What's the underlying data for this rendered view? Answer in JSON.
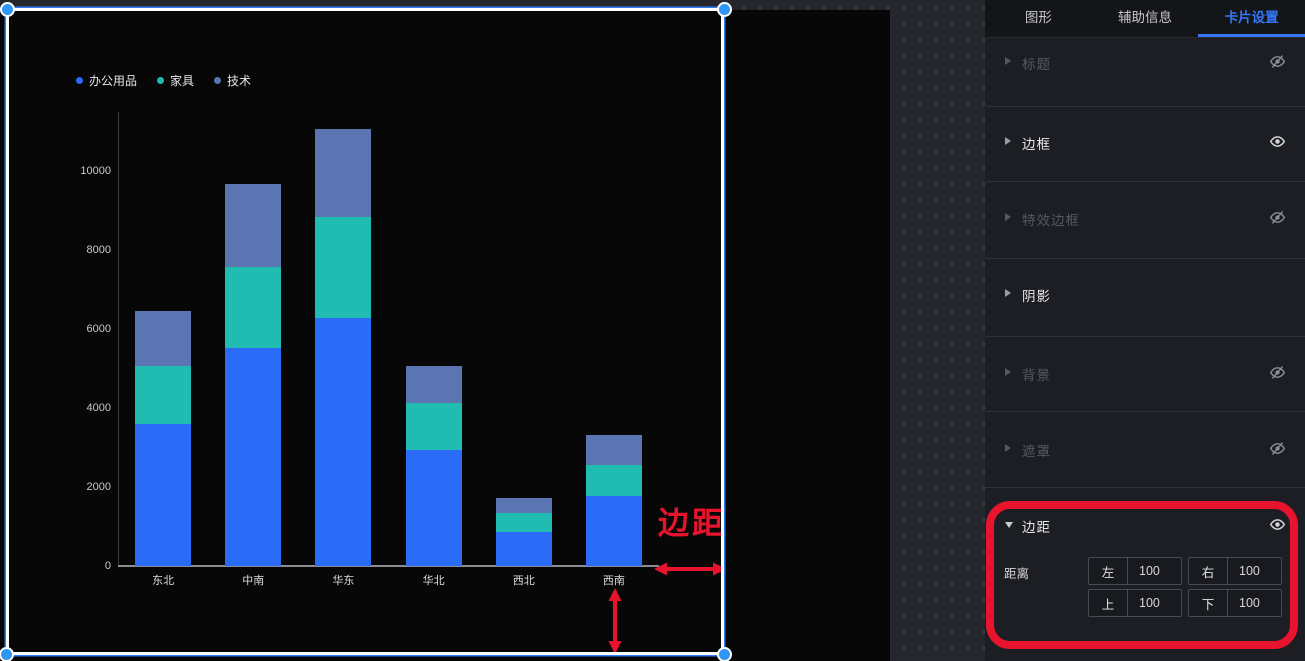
{
  "chart_data": {
    "type": "bar",
    "stacked": true,
    "title": "",
    "categories": [
      "东北",
      "中南",
      "华东",
      "华北",
      "西北",
      "西南"
    ],
    "series": [
      {
        "name": "办公用品",
        "color": "#2A6BF8",
        "values": [
          3600,
          5520,
          6280,
          2940,
          860,
          1770
        ]
      },
      {
        "name": "家具",
        "color": "#21BCB1",
        "values": [
          1460,
          2050,
          2550,
          1190,
          480,
          790
        ]
      },
      {
        "name": "技术",
        "color": "#5B74B2",
        "values": [
          1390,
          2100,
          2230,
          940,
          380,
          760
        ]
      }
    ],
    "y_ticks": [
      0,
      2000,
      4000,
      6000,
      8000,
      10000
    ],
    "ylim": [
      0,
      11490
    ],
    "grid": false,
    "legend_position": "top-left",
    "background": "#070707"
  },
  "annotations": {
    "margin_label": "边距",
    "color": "#E8132D"
  },
  "panel": {
    "accent_color": "#3577F5",
    "tabs": [
      {
        "label": "图形",
        "active": false
      },
      {
        "label": "辅助信息",
        "active": false
      },
      {
        "label": "卡片设置",
        "active": true
      }
    ],
    "sections": [
      {
        "label": "标题",
        "enabled": false,
        "expanded": false,
        "eye": "hidden"
      },
      {
        "label": "边框",
        "enabled": true,
        "expanded": false,
        "eye": "visible"
      },
      {
        "label": "特效边框",
        "enabled": false,
        "expanded": false,
        "eye": "hidden"
      },
      {
        "label": "阴影",
        "enabled": true,
        "expanded": false,
        "eye": "none"
      },
      {
        "label": "背景",
        "enabled": false,
        "expanded": false,
        "eye": "hidden"
      },
      {
        "label": "遮罩",
        "enabled": false,
        "expanded": false,
        "eye": "hidden"
      },
      {
        "label": "边距",
        "enabled": true,
        "expanded": true,
        "eye": "visible"
      }
    ],
    "margin_section": {
      "row_label": "距离",
      "inputs": [
        {
          "label": "左",
          "value": "100"
        },
        {
          "label": "右",
          "value": "100"
        },
        {
          "label": "上",
          "value": "100"
        },
        {
          "label": "下",
          "value": "100"
        }
      ]
    }
  }
}
